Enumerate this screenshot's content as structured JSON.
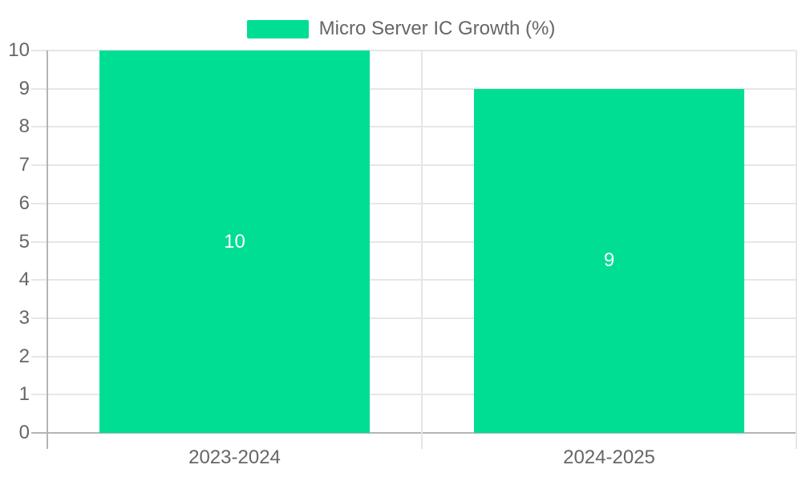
{
  "chart_data": {
    "type": "bar",
    "title": "Micro Server IC Growth (%)",
    "legend": [
      {
        "label": "Micro Server IC Growth (%)",
        "color": "#00DE94"
      }
    ],
    "legend_position": "top-center",
    "categories": [
      "2023-2024",
      "2024-2025"
    ],
    "values": [
      10,
      9
    ],
    "bar_value_labels": [
      "10",
      "9"
    ],
    "bar_value_label_position": "center-inside",
    "xlabel": "",
    "ylabel": "",
    "ylim": [
      0,
      10
    ],
    "yticks": [
      0,
      1,
      2,
      3,
      4,
      5,
      6,
      7,
      8,
      9,
      10
    ],
    "grid": true,
    "colors": {
      "bar": "#00DE94",
      "grid": "#E6E6E6",
      "axis": "#B5B5B5",
      "text": "#666666",
      "value_label": "#FFFFFF",
      "background": "#FFFFFF"
    }
  }
}
